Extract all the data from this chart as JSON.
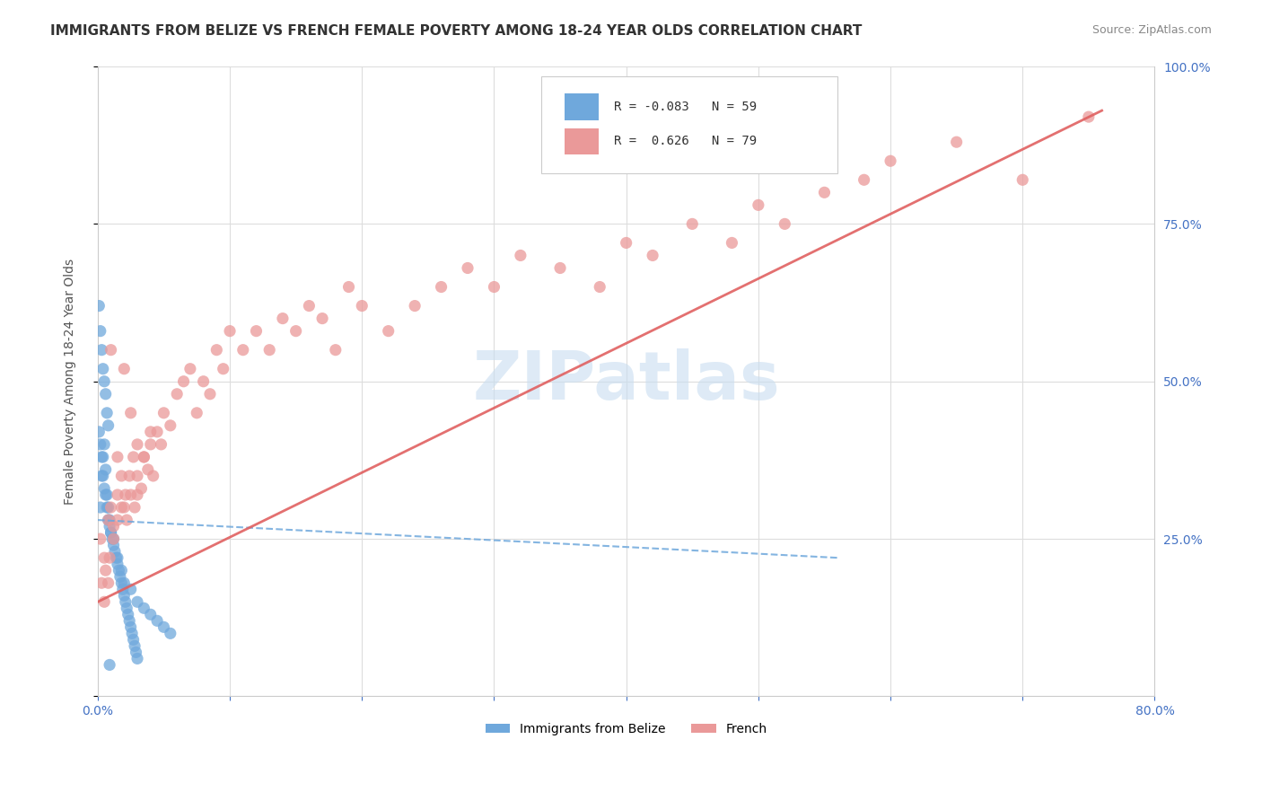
{
  "title": "IMMIGRANTS FROM BELIZE VS FRENCH FEMALE POVERTY AMONG 18-24 YEAR OLDS CORRELATION CHART",
  "source": "Source: ZipAtlas.com",
  "ylabel": "Female Poverty Among 18-24 Year Olds",
  "xlim": [
    0.0,
    0.8
  ],
  "ylim": [
    0.0,
    1.0
  ],
  "xticks": [
    0.0,
    0.1,
    0.2,
    0.3,
    0.4,
    0.5,
    0.6,
    0.7,
    0.8
  ],
  "yticks": [
    0.0,
    0.25,
    0.5,
    0.75,
    1.0
  ],
  "yticklabels": [
    "",
    "25.0%",
    "50.0%",
    "75.0%",
    "100.0%"
  ],
  "blue_color": "#6fa8dc",
  "pink_color": "#ea9999",
  "blue_R": -0.083,
  "blue_N": 59,
  "pink_R": 0.626,
  "pink_N": 79,
  "watermark": "ZIPatlas",
  "watermark_color": "#c8ddf0",
  "legend_blue_label": "Immigrants from Belize",
  "legend_pink_label": "French",
  "blue_scatter_x": [
    0.002,
    0.003,
    0.004,
    0.005,
    0.006,
    0.007,
    0.008,
    0.009,
    0.01,
    0.012,
    0.015,
    0.018,
    0.02,
    0.025,
    0.03,
    0.035,
    0.04,
    0.045,
    0.05,
    0.055,
    0.001,
    0.002,
    0.003,
    0.004,
    0.005,
    0.006,
    0.007,
    0.008,
    0.009,
    0.01,
    0.011,
    0.012,
    0.013,
    0.014,
    0.015,
    0.016,
    0.017,
    0.018,
    0.019,
    0.02,
    0.021,
    0.022,
    0.023,
    0.024,
    0.025,
    0.026,
    0.027,
    0.028,
    0.029,
    0.03,
    0.001,
    0.002,
    0.003,
    0.004,
    0.005,
    0.006,
    0.007,
    0.008,
    0.009
  ],
  "blue_scatter_y": [
    0.3,
    0.35,
    0.38,
    0.4,
    0.36,
    0.32,
    0.3,
    0.28,
    0.26,
    0.25,
    0.22,
    0.2,
    0.18,
    0.17,
    0.15,
    0.14,
    0.13,
    0.12,
    0.11,
    0.1,
    0.42,
    0.4,
    0.38,
    0.35,
    0.33,
    0.32,
    0.3,
    0.28,
    0.27,
    0.26,
    0.25,
    0.24,
    0.23,
    0.22,
    0.21,
    0.2,
    0.19,
    0.18,
    0.17,
    0.16,
    0.15,
    0.14,
    0.13,
    0.12,
    0.11,
    0.1,
    0.09,
    0.08,
    0.07,
    0.06,
    0.62,
    0.58,
    0.55,
    0.52,
    0.5,
    0.48,
    0.45,
    0.43,
    0.05
  ],
  "pink_scatter_x": [
    0.002,
    0.005,
    0.008,
    0.01,
    0.012,
    0.015,
    0.018,
    0.02,
    0.022,
    0.025,
    0.028,
    0.03,
    0.033,
    0.035,
    0.038,
    0.04,
    0.042,
    0.045,
    0.048,
    0.05,
    0.055,
    0.06,
    0.065,
    0.07,
    0.075,
    0.08,
    0.085,
    0.09,
    0.095,
    0.1,
    0.11,
    0.12,
    0.13,
    0.14,
    0.15,
    0.16,
    0.17,
    0.18,
    0.19,
    0.2,
    0.22,
    0.24,
    0.26,
    0.28,
    0.3,
    0.32,
    0.35,
    0.38,
    0.4,
    0.42,
    0.45,
    0.48,
    0.5,
    0.52,
    0.55,
    0.58,
    0.6,
    0.65,
    0.7,
    0.75,
    0.003,
    0.006,
    0.009,
    0.012,
    0.015,
    0.018,
    0.021,
    0.024,
    0.027,
    0.03,
    0.005,
    0.008,
    0.01,
    0.015,
    0.02,
    0.025,
    0.03,
    0.035,
    0.04
  ],
  "pink_scatter_y": [
    0.25,
    0.22,
    0.28,
    0.3,
    0.27,
    0.32,
    0.35,
    0.3,
    0.28,
    0.32,
    0.3,
    0.35,
    0.33,
    0.38,
    0.36,
    0.4,
    0.35,
    0.42,
    0.4,
    0.45,
    0.43,
    0.48,
    0.5,
    0.52,
    0.45,
    0.5,
    0.48,
    0.55,
    0.52,
    0.58,
    0.55,
    0.58,
    0.55,
    0.6,
    0.58,
    0.62,
    0.6,
    0.55,
    0.65,
    0.62,
    0.58,
    0.62,
    0.65,
    0.68,
    0.65,
    0.7,
    0.68,
    0.65,
    0.72,
    0.7,
    0.75,
    0.72,
    0.78,
    0.75,
    0.8,
    0.82,
    0.85,
    0.88,
    0.82,
    0.92,
    0.18,
    0.2,
    0.22,
    0.25,
    0.28,
    0.3,
    0.32,
    0.35,
    0.38,
    0.4,
    0.15,
    0.18,
    0.55,
    0.38,
    0.52,
    0.45,
    0.32,
    0.38,
    0.42
  ],
  "blue_trendline_x": [
    0.0,
    0.56
  ],
  "blue_trendline_y": [
    0.28,
    0.22
  ],
  "pink_trendline_x": [
    0.0,
    0.76
  ],
  "pink_trendline_y": [
    0.15,
    0.93
  ],
  "bg_color": "#ffffff",
  "grid_color": "#dddddd",
  "title_fontsize": 11,
  "axis_fontsize": 10,
  "tick_fontsize": 10
}
